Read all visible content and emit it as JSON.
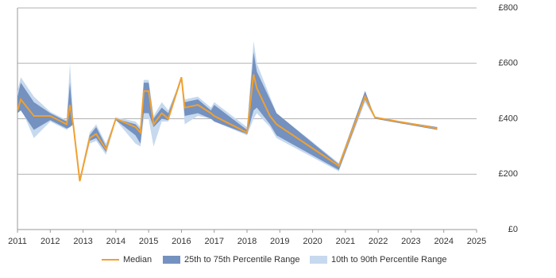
{
  "chart_data": {
    "type": "range-line",
    "x": [
      2011.0,
      2011.1,
      2011.5,
      2012.0,
      2012.5,
      2012.6,
      2012.7,
      2012.9,
      2013.2,
      2013.4,
      2013.7,
      2014.0,
      2014.6,
      2014.75,
      2014.85,
      2015.0,
      2015.15,
      2015.4,
      2015.6,
      2016.0,
      2016.1,
      2016.5,
      2016.9,
      2017.0,
      2018.0,
      2018.2,
      2018.3,
      2018.7,
      2018.9,
      2020.8,
      2021.6,
      2021.9,
      2023.8
    ],
    "series": [
      {
        "name": "10th to 90th Percentile Range",
        "color": "#c6d9ee",
        "low": [
          420,
          440,
          330,
          390,
          360,
          370,
          380,
          170,
          310,
          320,
          270,
          395,
          310,
          300,
          400,
          400,
          300,
          390,
          390,
          540,
          380,
          410,
          400,
          390,
          340,
          400,
          420,
          370,
          330,
          210,
          460,
          400,
          360
        ],
        "high": [
          500,
          550,
          480,
          425,
          395,
          600,
          400,
          185,
          350,
          380,
          310,
          405,
          390,
          370,
          540,
          540,
          410,
          460,
          430,
          550,
          470,
          480,
          440,
          460,
          370,
          680,
          600,
          480,
          420,
          240,
          500,
          405,
          370
        ]
      },
      {
        "name": "25th to 75th Percentile Range",
        "color": "#7491bf",
        "low": [
          420,
          430,
          360,
          395,
          365,
          370,
          380,
          175,
          320,
          330,
          280,
          395,
          340,
          310,
          420,
          420,
          370,
          400,
          395,
          540,
          410,
          420,
          400,
          390,
          345,
          430,
          440,
          380,
          340,
          215,
          470,
          400,
          360
        ],
        "high": [
          480,
          530,
          460,
          420,
          390,
          530,
          390,
          180,
          340,
          370,
          300,
          400,
          380,
          360,
          530,
          530,
          400,
          440,
          420,
          550,
          460,
          470,
          430,
          450,
          360,
          640,
          570,
          470,
          420,
          235,
          500,
          405,
          370
        ]
      },
      {
        "name": "Median",
        "color": "#f0a030",
        "values": [
          430,
          470,
          410,
          410,
          380,
          450,
          380,
          175,
          330,
          345,
          290,
          400,
          370,
          350,
          500,
          500,
          380,
          420,
          400,
          550,
          440,
          450,
          420,
          410,
          350,
          560,
          510,
          410,
          380,
          230,
          480,
          405,
          365
        ]
      }
    ],
    "xlim": [
      2011,
      2025
    ],
    "xticks": [
      2011,
      2012,
      2013,
      2014,
      2015,
      2016,
      2017,
      2018,
      2019,
      2020,
      2021,
      2022,
      2023,
      2024,
      2025
    ],
    "ylim": [
      0,
      800
    ],
    "yticks": [
      {
        "value": 0,
        "label": "£0"
      },
      {
        "value": 200,
        "label": "£200"
      },
      {
        "value": 400,
        "label": "£400"
      },
      {
        "value": 600,
        "label": "£600"
      },
      {
        "value": 800,
        "label": "£800"
      }
    ],
    "grid": true
  }
}
